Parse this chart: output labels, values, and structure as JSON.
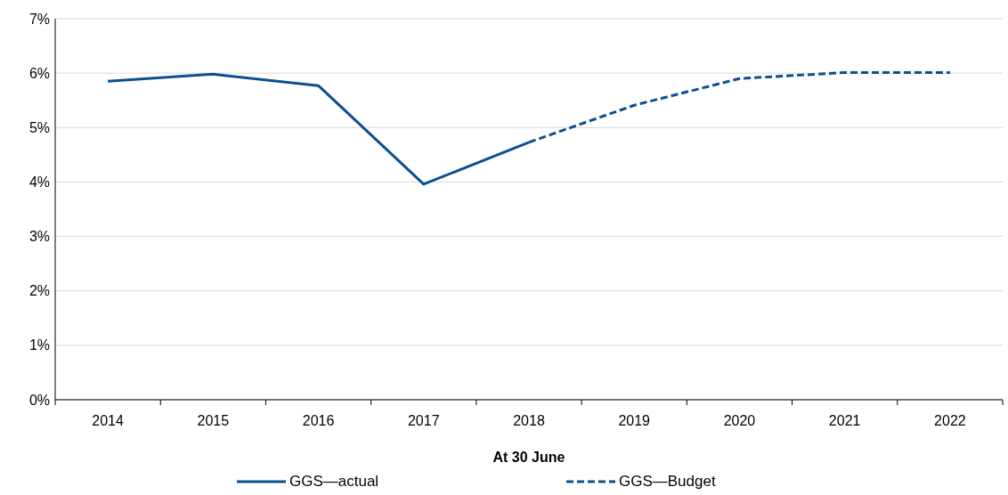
{
  "chart_data": {
    "type": "line",
    "xlabel": "At 30 June",
    "categories": [
      "2014",
      "2015",
      "2016",
      "2017",
      "2018",
      "2019",
      "2020",
      "2021",
      "2022"
    ],
    "series": [
      {
        "name": "GGS—actual",
        "color": "#0b4f91",
        "line_style": "solid",
        "values": [
          5.85,
          5.98,
          5.77,
          3.96,
          4.73,
          null,
          null,
          null,
          null
        ]
      },
      {
        "name": "GGS—Budget",
        "color": "#0b4f91",
        "line_style": "dashed",
        "values": [
          null,
          null,
          null,
          null,
          4.73,
          5.41,
          5.9,
          6.01,
          6.01
        ]
      }
    ],
    "ylim": [
      0,
      7
    ],
    "yticks": [
      {
        "value": 0,
        "label": "0%"
      },
      {
        "value": 1,
        "label": "1%"
      },
      {
        "value": 2,
        "label": "2%"
      },
      {
        "value": 3,
        "label": "3%"
      },
      {
        "value": 4,
        "label": "4%"
      },
      {
        "value": 5,
        "label": "5%"
      },
      {
        "value": 6,
        "label": "6%"
      },
      {
        "value": 7,
        "label": "7%"
      }
    ],
    "grid": "y",
    "legend": "bottom",
    "marker": "none"
  }
}
